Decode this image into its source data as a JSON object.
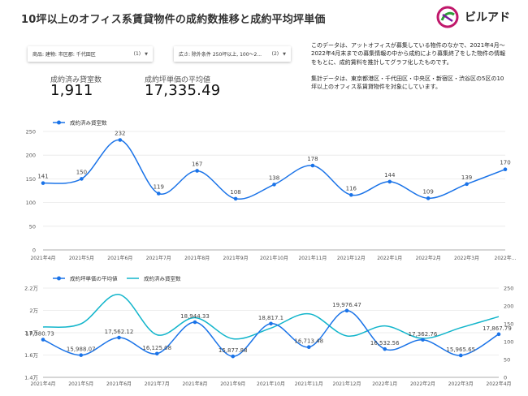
{
  "title": "10坪以上のオフィス系賃貸物件の成約数推移と成約平均坪単価",
  "logo": {
    "text": "ビルアド"
  },
  "filters": [
    {
      "label": "商品: 建物: 市区郡: 千代田区",
      "count": "(1)"
    },
    {
      "label": "広さ: 除外条件 250坪以上, 100～2...",
      "count": "(2)"
    }
  ],
  "description": [
    "このデータは、アットオフィスが募集している物件のなかで、2021年4月～2022年4月末までの募集情報の中から成約により募集終了をした物件の情報をもとに、成約賃料を推計してグラフ化したものです。",
    "集計データは、東京都港区・千代田区・中央区・新宿区・渋谷区の5区の10坪以上のオフィス系賃貸物件を対象にしています。"
  ],
  "kpis": [
    {
      "label": "成約済み貸室数",
      "value": "1,911"
    },
    {
      "label": "成約坪単価の平均値",
      "value": "17,335.49"
    }
  ],
  "colors": {
    "series_blue": "#1a73e8",
    "series_teal": "#12b5cb",
    "grid": "#e8e8e8"
  },
  "chart_data": [
    {
      "type": "line",
      "categories": [
        "2021年4月",
        "2021年5月",
        "2021年6月",
        "2021年7月",
        "2021年8月",
        "2021年9月",
        "2021年10月",
        "2021年11月",
        "2021年12月",
        "2022年1月",
        "2022年2月",
        "2022年3月",
        "2022年..."
      ],
      "series": [
        {
          "name": "成約済み貸室数",
          "values": [
            141,
            150,
            232,
            119,
            167,
            108,
            138,
            178,
            116,
            144,
            109,
            139,
            170
          ]
        }
      ],
      "ylim": [
        0,
        250
      ],
      "yticks": [
        "0",
        "50",
        "100",
        "150",
        "200",
        "250"
      ],
      "legend": "top-left",
      "grid": true
    },
    {
      "type": "line",
      "categories": [
        "2021年4月",
        "2021年5月",
        "2021年6月",
        "2021年7月",
        "2021年8月",
        "2021年9月",
        "2021年10月",
        "2021年11月",
        "2021年12月",
        "2022年1月",
        "2022年2月",
        "2022年3月",
        "2022年4月"
      ],
      "series": [
        {
          "name": "成約坪単価の平均値",
          "axis": "left",
          "values": [
            17380.73,
            15988.07,
            17562.12,
            16125.08,
            18944.33,
            15877.88,
            18817.1,
            16713.48,
            19976.47,
            16532.56,
            17362.76,
            15965.65,
            17867.79
          ],
          "labels": [
            "17,380.73",
            "15,988.07",
            "17,562.12",
            "16,125.08",
            "18,944.33",
            "15,877.88",
            "18,817.1",
            "16,713.48",
            "19,976.47",
            "16,532.56",
            "17,362.76",
            "15,965.65",
            "17,867.79"
          ]
        },
        {
          "name": "成約済み貸室数",
          "axis": "right",
          "values": [
            141,
            150,
            232,
            119,
            167,
            108,
            138,
            178,
            116,
            144,
            109,
            139,
            170
          ]
        }
      ],
      "ylim_left": [
        14000,
        22000
      ],
      "yticks_left": [
        "1.4万",
        "1.6万",
        "1.8万",
        "2万",
        "2.2万"
      ],
      "ylim_right": [
        0,
        250
      ],
      "yticks_right": [
        "0",
        "50",
        "100",
        "150",
        "200",
        "250"
      ],
      "legend": "top-left",
      "grid": true
    }
  ]
}
